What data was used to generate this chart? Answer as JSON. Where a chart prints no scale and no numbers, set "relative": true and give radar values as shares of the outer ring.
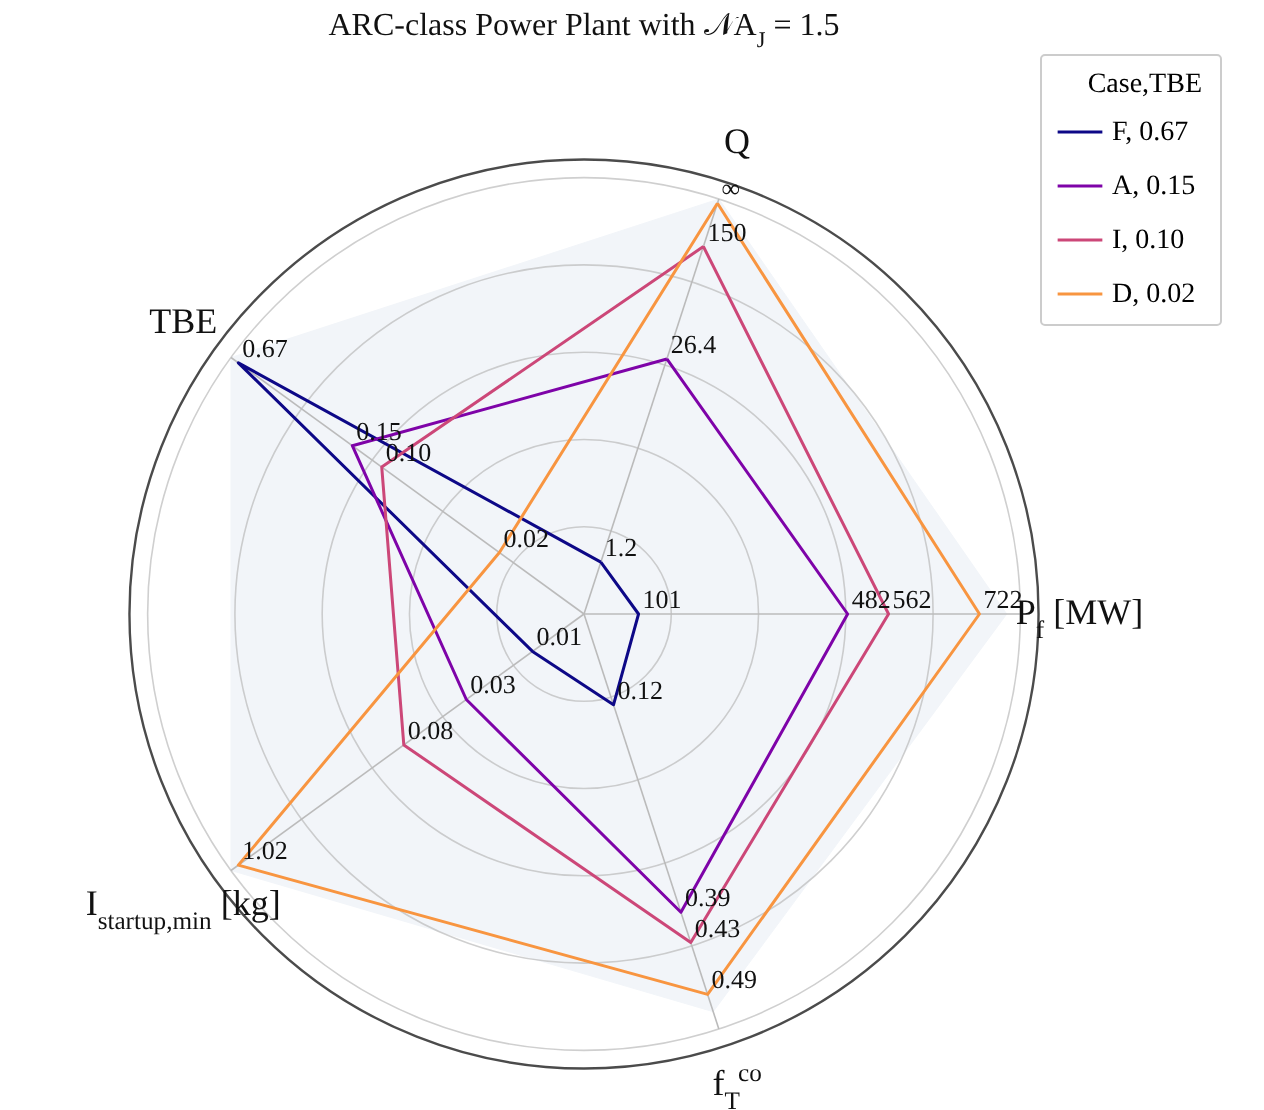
{
  "chart_data": {
    "type": "radar",
    "title": "ARC-class Power Plant with 𝒩A$_{J}$ = 1.5",
    "relative": true,
    "grid": true,
    "legend": "top right",
    "legend_title": "Case,TBE",
    "categories": [
      "Q",
      "P$_{f}$ [MW]",
      "f$_{T}$$^{co}$",
      "I$_{startup,min}$ [kg]",
      "TBE"
    ],
    "series": [
      {
        "type": "area",
        "color": "#f2f5f9",
        "values": [
          0.96,
          0.93,
          0.92,
          0.96,
          0.96
        ]
      },
      {
        "name": "F,  0.67",
        "color": "#0d0887",
        "values": [
          0.12,
          0.12,
          0.21,
          0.14,
          0.94
        ]
      },
      {
        "name": "A,  0.15",
        "color": "#7e03a8",
        "values": [
          0.59,
          0.58,
          0.69,
          0.32,
          0.63
        ]
      },
      {
        "name": "I,   0.10",
        "color": "#cc4778",
        "values": [
          0.85,
          0.67,
          0.76,
          0.49,
          0.55
        ]
      },
      {
        "name": "D, 0.02",
        "color": "#f89540",
        "values": [
          0.95,
          0.87,
          0.88,
          0.94,
          0.23
        ]
      }
    ],
    "annotations": [
      {
        "text": "1.2",
        "x": "Q"
      },
      {
        "text": "101",
        "x": "P$_{f}$ [MW]"
      },
      {
        "text": "0.12",
        "x": "f$_{T}$$^{co}$"
      },
      {
        "text": "0.01",
        "x": "I$_{startup,min}$ [kg]"
      },
      {
        "text": "0.67",
        "x": "TBE"
      },
      {
        "text": "26.4",
        "x": "Q"
      },
      {
        "text": "482",
        "x": "P$_{f}$ [MW]"
      },
      {
        "text": "0.39",
        "x": "f$_{T}$$^{co}$"
      },
      {
        "text": "0.03",
        "x": "I$_{startup,min}$ [kg]"
      },
      {
        "text": "0.15",
        "x": "TBE"
      },
      {
        "text": "150",
        "x": "Q"
      },
      {
        "text": "562",
        "x": "P$_{f}$ [MW]"
      },
      {
        "text": "0.43",
        "x": "f$_{T}$$^{co}$"
      },
      {
        "text": "0.08",
        "x": "I$_{startup,min}$ [kg]"
      },
      {
        "text": "0.10",
        "x": "TBE"
      },
      {
        "text": "∞",
        "x": "Q"
      },
      {
        "text": "722",
        "x": "P$_{f}$ [MW]"
      },
      {
        "text": "0.49",
        "x": "f$_{T}$$^{co}$"
      },
      {
        "text": "1.02",
        "x": "I$_{startup,min}$ [kg]"
      },
      {
        "text": "0.02",
        "x": "TBE"
      }
    ]
  }
}
